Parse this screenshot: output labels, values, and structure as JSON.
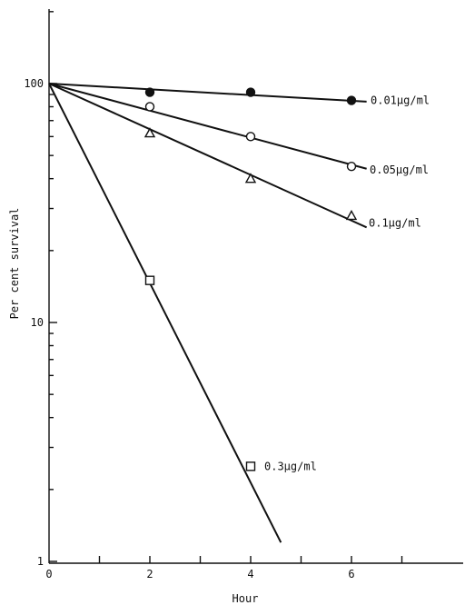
{
  "chart_data": {
    "type": "scatter",
    "title": "",
    "xlabel": "Hour",
    "ylabel": "Per cent survival",
    "xlim": [
      0,
      8
    ],
    "ylim": [
      1,
      200
    ],
    "yscale": "log",
    "grid": false,
    "legend": "inline labels",
    "x_ticks": [
      0,
      1,
      2,
      3,
      4,
      5,
      6,
      7
    ],
    "x_tick_labels": [
      "0",
      "",
      "2",
      "",
      "4",
      "",
      "6",
      ""
    ],
    "y_tick_labels": [
      "1",
      "10",
      "100"
    ],
    "series": [
      {
        "name": "0.01µg/ml",
        "marker": "filled-circle",
        "points": [
          [
            2,
            92
          ],
          [
            4,
            92
          ],
          [
            6,
            85
          ]
        ],
        "fit_line": [
          [
            0,
            100
          ],
          [
            6.3,
            84
          ]
        ]
      },
      {
        "name": "0.05µg/ml",
        "marker": "open-circle",
        "points": [
          [
            2,
            80
          ],
          [
            4,
            60
          ],
          [
            6,
            45
          ]
        ],
        "fit_line": [
          [
            0,
            100
          ],
          [
            6.3,
            44
          ]
        ]
      },
      {
        "name": "0.1µg/ml",
        "marker": "open-triangle",
        "points": [
          [
            2,
            62
          ],
          [
            4,
            40
          ],
          [
            6,
            28
          ]
        ],
        "fit_line": [
          [
            0,
            100
          ],
          [
            6.3,
            25
          ]
        ]
      },
      {
        "name": "0.3µg/ml",
        "marker": "open-square",
        "points": [
          [
            2,
            15
          ],
          [
            4,
            2.5
          ]
        ],
        "fit_line": [
          [
            0,
            100
          ],
          [
            4.6,
            1.2
          ]
        ]
      }
    ]
  }
}
